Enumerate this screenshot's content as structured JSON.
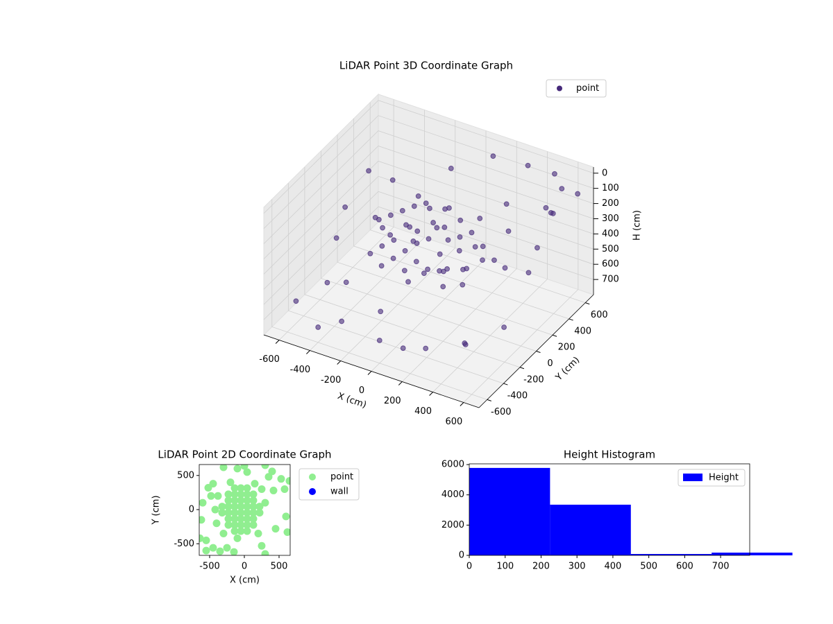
{
  "chart_data": [
    {
      "type": "scatter3d",
      "title": "LiDAR Point 3D Coordinate Graph",
      "xlabel": "X (cm)",
      "ylabel": "Y (cm)",
      "zlabel": "H (cm)",
      "xlim": [
        -700,
        700
      ],
      "ylim": [
        -700,
        700
      ],
      "zlim": [
        800,
        -40
      ],
      "xticks": [
        -600,
        -400,
        -200,
        0,
        200,
        400,
        600
      ],
      "yticks": [
        -600,
        -400,
        -200,
        0,
        200,
        400,
        600
      ],
      "zticks": [
        0,
        100,
        200,
        300,
        400,
        500,
        600,
        700
      ],
      "legend": "upper right",
      "series": [
        {
          "name": "point",
          "color": "#46297a",
          "x": [
            -300,
            -250,
            -200,
            -150,
            -100,
            0,
            100,
            200,
            300,
            350,
            300,
            200,
            100,
            0,
            -100,
            -200,
            -300,
            -350,
            -250,
            -150,
            -50,
            50,
            150,
            250,
            -200,
            -100,
            0,
            100,
            200,
            0,
            -50,
            150,
            -300,
            -200,
            0,
            200,
            300,
            -100,
            100,
            50,
            -150,
            250,
            -250,
            400,
            -50,
            150,
            -400,
            0,
            200,
            -200,
            500,
            300,
            100,
            600,
            650,
            550,
            400,
            -200,
            -500,
            -650,
            -600,
            -500,
            -300,
            0,
            300,
            500,
            650,
            650,
            600,
            -400,
            -650,
            200,
            400,
            -100,
            550,
            -550,
            650,
            450,
            -350,
            100
          ],
          "y": [
            100,
            150,
            200,
            250,
            200,
            250,
            200,
            150,
            100,
            0,
            -100,
            -150,
            -200,
            -150,
            -100,
            -50,
            0,
            50,
            -100,
            -150,
            -200,
            -150,
            -100,
            -50,
            100,
            50,
            0,
            50,
            0,
            100,
            150,
            100,
            -150,
            -200,
            -250,
            -200,
            -150,
            0,
            -50,
            100,
            50,
            100,
            0,
            50,
            -50,
            -150,
            100,
            200,
            250,
            250,
            600,
            650,
            600,
            500,
            300,
            400,
            200,
            650,
            500,
            200,
            0,
            -300,
            -500,
            -600,
            -600,
            -500,
            -300,
            0,
            200,
            -600,
            -400,
            600,
            -300,
            -400,
            -100,
            300,
            600,
            650,
            -350,
            -500
          ],
          "z": [
            300,
            280,
            260,
            250,
            240,
            230,
            250,
            270,
            300,
            320,
            340,
            350,
            360,
            370,
            360,
            350,
            330,
            320,
            380,
            400,
            420,
            430,
            410,
            390,
            330,
            310,
            300,
            300,
            310,
            280,
            290,
            290,
            420,
            440,
            450,
            440,
            420,
            350,
            340,
            260,
            300,
            320,
            360,
            330,
            320,
            380,
            350,
            210,
            230,
            220,
            20,
            60,
            40,
            30,
            70,
            120,
            40,
            250,
            350,
            420,
            500,
            600,
            680,
            650,
            600,
            550,
            500,
            300,
            260,
            700,
            720,
            500,
            700,
            600,
            250,
            200,
            100,
            320,
            520,
            720
          ]
        }
      ]
    },
    {
      "type": "scatter",
      "title": "LiDAR Point 2D Coordinate Graph",
      "xlabel": "X (cm)",
      "ylabel": "Y (cm)",
      "xlim": [
        -650,
        660
      ],
      "ylim": [
        -670,
        660
      ],
      "xticks": [
        -500,
        0,
        500
      ],
      "yticks": [
        -500,
        0,
        500
      ],
      "legend": "outside right",
      "series": [
        {
          "name": "point",
          "color": "#90ee90",
          "x": [
            -320,
            -320,
            -230,
            -230,
            -230,
            -230,
            -230,
            -230,
            -140,
            -140,
            -140,
            -140,
            -140,
            -140,
            -140,
            -140,
            -50,
            -50,
            -50,
            -50,
            -50,
            -50,
            -50,
            -50,
            40,
            40,
            40,
            40,
            40,
            40,
            40,
            40,
            130,
            130,
            130,
            130,
            130,
            130,
            220,
            220,
            -380,
            -400,
            250,
            200,
            -300,
            150,
            -200,
            -100,
            300,
            -420,
            -620,
            -640,
            -550,
            -450,
            -350,
            -250,
            -150,
            300,
            450,
            620,
            600,
            580,
            650,
            530,
            400,
            350,
            -300,
            -100,
            0,
            40,
            -450,
            -520,
            -600,
            -480,
            -550,
            250,
            420,
            300
          ],
          "values": [
            -45,
            45,
            -225,
            -135,
            -45,
            45,
            135,
            225,
            -315,
            -225,
            -135,
            -45,
            45,
            135,
            225,
            315,
            -315,
            -225,
            -135,
            -45,
            45,
            135,
            225,
            315,
            -315,
            -225,
            -135,
            -45,
            45,
            135,
            225,
            315,
            -225,
            -135,
            -45,
            45,
            135,
            225,
            -45,
            45,
            200,
            -200,
            300,
            -350,
            -350,
            380,
            400,
            -420,
            100,
            0,
            -150,
            -420,
            -600,
            -560,
            -610,
            -560,
            -620,
            -650,
            -280,
            -330,
            -100,
            300,
            420,
            450,
            560,
            480,
            620,
            600,
            640,
            550,
            380,
            320,
            100,
            200,
            -450,
            -530,
            280,
            650
          ]
        },
        {
          "name": "wall",
          "color": "#0000ff",
          "x": [],
          "values": []
        }
      ]
    },
    {
      "type": "histogram",
      "title": "Height Histogram",
      "name": "Height",
      "color": "#0000ff",
      "bins": [
        0,
        225,
        450,
        675,
        900
      ],
      "values": [
        5780,
        3350,
        90,
        180
      ],
      "xlim": [
        0,
        781
      ],
      "ylim": [
        0,
        6050
      ],
      "xticks": [
        0,
        100,
        200,
        300,
        400,
        500,
        600,
        700
      ],
      "yticks": [
        0,
        2000,
        4000,
        6000
      ],
      "legend": "upper right"
    }
  ]
}
